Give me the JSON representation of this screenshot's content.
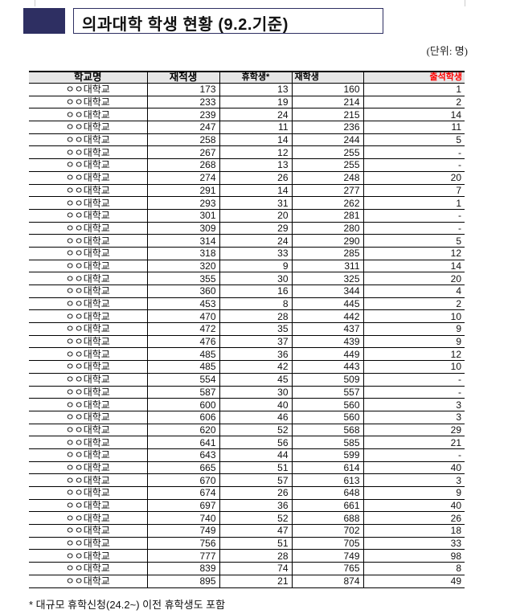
{
  "title": "의과대학 학생 현황 (9.2.기준)",
  "unit": "(단위: 명)",
  "table": {
    "headers": [
      "학교명",
      "재적생",
      "휴학생*",
      "재학생",
      "출석학생"
    ],
    "header_colors": {
      "출석학생": "#ff0000"
    },
    "rows": [
      [
        "ㅇㅇ대학교",
        "173",
        "13",
        "160",
        "1"
      ],
      [
        "ㅇㅇ대학교",
        "233",
        "19",
        "214",
        "2"
      ],
      [
        "ㅇㅇ대학교",
        "239",
        "24",
        "215",
        "14"
      ],
      [
        "ㅇㅇ대학교",
        "247",
        "11",
        "236",
        "11"
      ],
      [
        "ㅇㅇ대학교",
        "258",
        "14",
        "244",
        "5"
      ],
      [
        "ㅇㅇ대학교",
        "267",
        "12",
        "255",
        "-"
      ],
      [
        "ㅇㅇ대학교",
        "268",
        "13",
        "255",
        "-"
      ],
      [
        "ㅇㅇ대학교",
        "274",
        "26",
        "248",
        "20"
      ],
      [
        "ㅇㅇ대학교",
        "291",
        "14",
        "277",
        "7"
      ],
      [
        "ㅇㅇ대학교",
        "293",
        "31",
        "262",
        "1"
      ],
      [
        "ㅇㅇ대학교",
        "301",
        "20",
        "281",
        "-"
      ],
      [
        "ㅇㅇ대학교",
        "309",
        "29",
        "280",
        "-"
      ],
      [
        "ㅇㅇ대학교",
        "314",
        "24",
        "290",
        "5"
      ],
      [
        "ㅇㅇ대학교",
        "318",
        "33",
        "285",
        "12"
      ],
      [
        "ㅇㅇ대학교",
        "320",
        "9",
        "311",
        "14"
      ],
      [
        "ㅇㅇ대학교",
        "355",
        "30",
        "325",
        "20"
      ],
      [
        "ㅇㅇ대학교",
        "360",
        "16",
        "344",
        "4"
      ],
      [
        "ㅇㅇ대학교",
        "453",
        "8",
        "445",
        "2"
      ],
      [
        "ㅇㅇ대학교",
        "470",
        "28",
        "442",
        "10"
      ],
      [
        "ㅇㅇ대학교",
        "472",
        "35",
        "437",
        "9"
      ],
      [
        "ㅇㅇ대학교",
        "476",
        "37",
        "439",
        "9"
      ],
      [
        "ㅇㅇ대학교",
        "485",
        "36",
        "449",
        "12"
      ],
      [
        "ㅇㅇ대학교",
        "485",
        "42",
        "443",
        "10"
      ],
      [
        "ㅇㅇ대학교",
        "554",
        "45",
        "509",
        "-"
      ],
      [
        "ㅇㅇ대학교",
        "587",
        "30",
        "557",
        "-"
      ],
      [
        "ㅇㅇ대학교",
        "600",
        "40",
        "560",
        "3"
      ],
      [
        "ㅇㅇ대학교",
        "606",
        "46",
        "560",
        "3"
      ],
      [
        "ㅇㅇ대학교",
        "620",
        "52",
        "568",
        "29"
      ],
      [
        "ㅇㅇ대학교",
        "641",
        "56",
        "585",
        "21"
      ],
      [
        "ㅇㅇ대학교",
        "643",
        "44",
        "599",
        "-"
      ],
      [
        "ㅇㅇ대학교",
        "665",
        "51",
        "614",
        "40"
      ],
      [
        "ㅇㅇ대학교",
        "670",
        "57",
        "613",
        "3"
      ],
      [
        "ㅇㅇ대학교",
        "674",
        "26",
        "648",
        "9"
      ],
      [
        "ㅇㅇ대학교",
        "697",
        "36",
        "661",
        "40"
      ],
      [
        "ㅇㅇ대학교",
        "740",
        "52",
        "688",
        "26"
      ],
      [
        "ㅇㅇ대학교",
        "749",
        "47",
        "702",
        "18"
      ],
      [
        "ㅇㅇ대학교",
        "756",
        "51",
        "705",
        "33"
      ],
      [
        "ㅇㅇ대학교",
        "777",
        "28",
        "749",
        "98"
      ],
      [
        "ㅇㅇ대학교",
        "839",
        "74",
        "765",
        "8"
      ],
      [
        "ㅇㅇ대학교",
        "895",
        "21",
        "874",
        "49"
      ]
    ]
  },
  "footnote": "* 대규모 휴학신청(24.2~) 이전 휴학생도 포함"
}
